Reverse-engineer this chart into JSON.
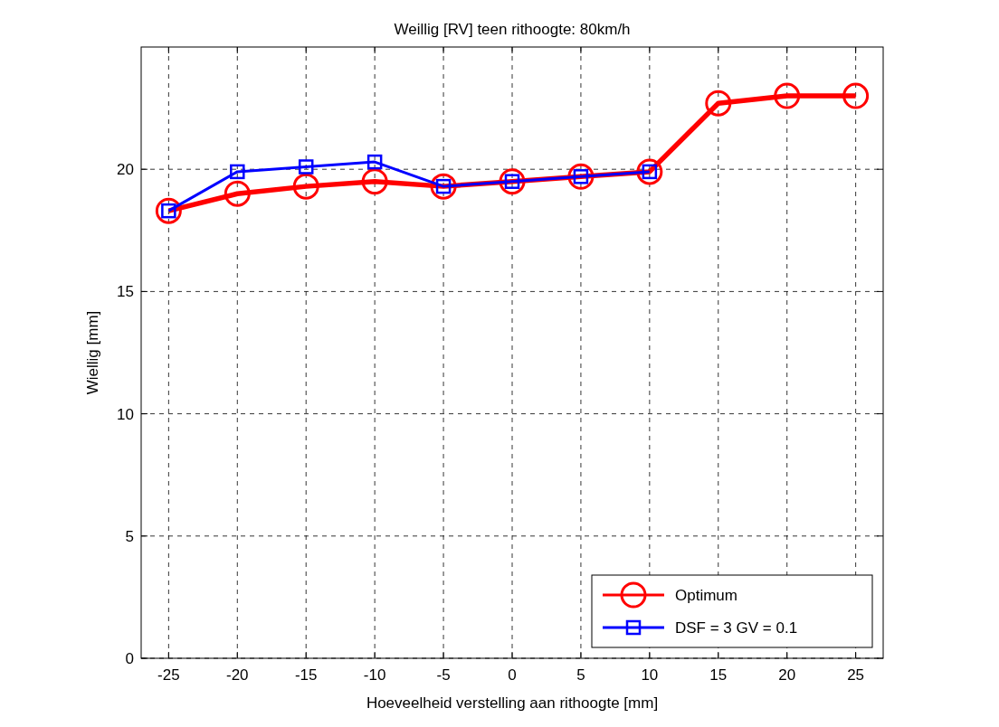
{
  "chart_data": {
    "type": "line",
    "title": "Weillig [RV] teen rithoogte: 80km/h",
    "xlabel": "Hoeveelheid verstelling aan rithoogte [mm]",
    "ylabel": "Wiellig [mm]",
    "xlim": [
      -27,
      27
    ],
    "xticks": [
      -25,
      -20,
      -15,
      -10,
      -5,
      0,
      5,
      10,
      15,
      20,
      25
    ],
    "ylim": [
      0,
      25
    ],
    "yticks": [
      0,
      5,
      10,
      15,
      20
    ],
    "grid": true,
    "legend": "bottom right",
    "line_style": "solid",
    "series": [
      {
        "name": "Optimum",
        "color": "#ff0000",
        "marker": "circle",
        "x": [
          -25,
          -20,
          -15,
          -10,
          -5,
          0,
          5,
          10,
          15,
          20,
          25
        ],
        "values": [
          18.3,
          19.0,
          19.3,
          19.5,
          19.3,
          19.5,
          19.7,
          19.9,
          22.7,
          23.0,
          23.0
        ]
      },
      {
        "name": "DSF = 3 GV = 0.1",
        "color": "#0000ff",
        "marker": "square",
        "x": [
          -25,
          -20,
          -15,
          -10,
          -5,
          0,
          5,
          10
        ],
        "values": [
          18.3,
          19.9,
          20.1,
          20.3,
          19.3,
          19.5,
          19.7,
          19.9
        ]
      }
    ]
  }
}
